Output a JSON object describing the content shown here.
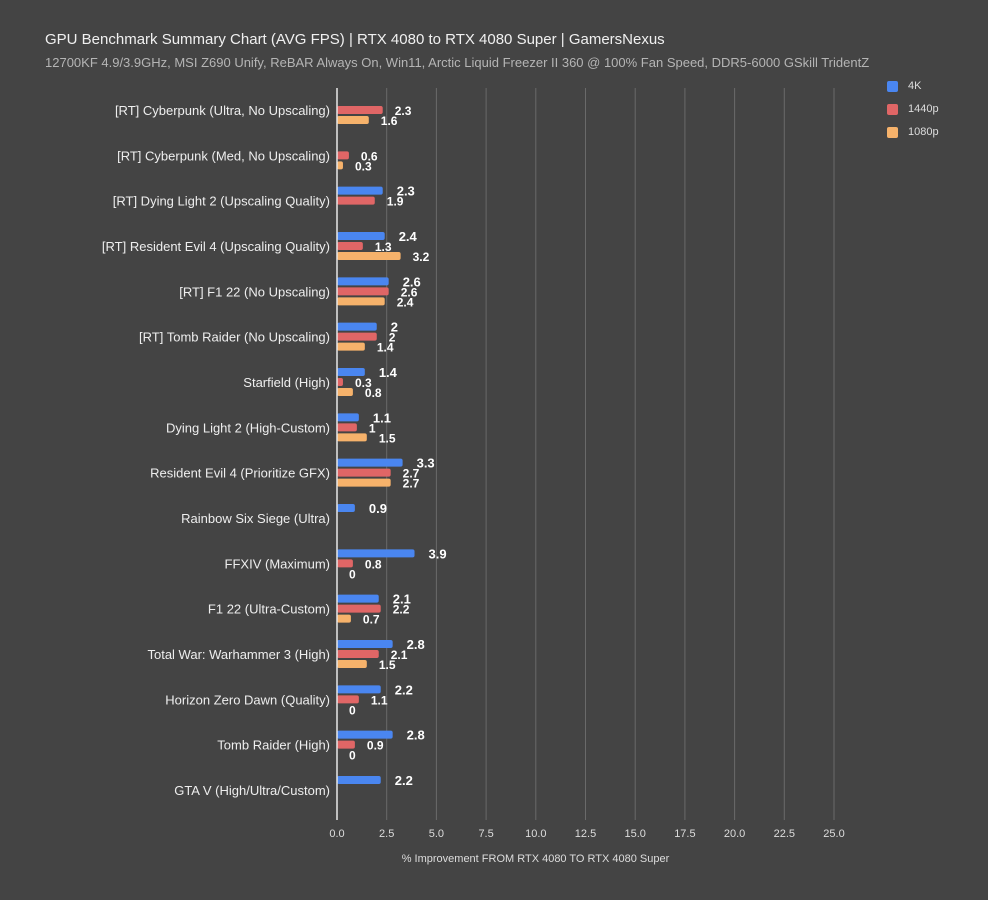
{
  "chart_data": {
    "type": "bar",
    "orientation": "horizontal",
    "title": "GPU Benchmark Summary Chart (AVG FPS) | RTX 4080 to RTX 4080 Super | GamersNexus",
    "subtitle": "12700KF 4.9/3.9GHz, MSI Z690 Unify, ReBAR Always On, Win11, Arctic Liquid Freezer II 360 @ 100% Fan Speed, DDR5-6000 GSkill TridentZ",
    "xlabel": "% Improvement FROM RTX 4080 TO RTX 4080 Super",
    "ylabel": "",
    "xlim": [
      0,
      25
    ],
    "xticks": [
      "0.0",
      "2.5",
      "5.0",
      "7.5",
      "10.0",
      "12.5",
      "15.0",
      "17.5",
      "20.0",
      "22.5",
      "25.0"
    ],
    "grid": true,
    "legend_position": "top-right",
    "categories": [
      "[RT] Cyberpunk (Ultra, No Upscaling)",
      "[RT] Cyberpunk (Med, No Upscaling)",
      "[RT] Dying Light 2 (Upscaling Quality)",
      "[RT] Resident Evil 4 (Upscaling Quality)",
      "[RT] F1 22 (No Upscaling)",
      "[RT] Tomb Raider (No Upscaling)",
      "Starfield (High)",
      "Dying Light 2 (High-Custom)",
      "Resident Evil 4 (Prioritize GFX)",
      "Rainbow Six Siege (Ultra)",
      "FFXIV (Maximum)",
      "F1 22 (Ultra-Custom)",
      "Total War: Warhammer 3 (High)",
      "Horizon Zero Dawn (Quality)",
      "Tomb Raider (High)",
      "GTA V (High/Ultra/Custom)"
    ],
    "series": [
      {
        "name": "4K",
        "color": "#4a86f0",
        "values": [
          null,
          null,
          2.3,
          2.4,
          2.6,
          2,
          1.4,
          1.1,
          3.3,
          0.9,
          3.9,
          2.1,
          2.8,
          2.2,
          2.8,
          2.2
        ]
      },
      {
        "name": "1440p",
        "color": "#e06666",
        "values": [
          2.3,
          0.6,
          1.9,
          1.3,
          2.6,
          2,
          0.3,
          1,
          2.7,
          null,
          0.8,
          2.2,
          2.1,
          1.1,
          0.9,
          null
        ]
      },
      {
        "name": "1080p",
        "color": "#f6b26b",
        "values": [
          1.6,
          0.3,
          null,
          3.2,
          2.4,
          1.4,
          0.8,
          1.5,
          2.7,
          null,
          0,
          0.7,
          1.5,
          0,
          0,
          null
        ]
      }
    ]
  }
}
